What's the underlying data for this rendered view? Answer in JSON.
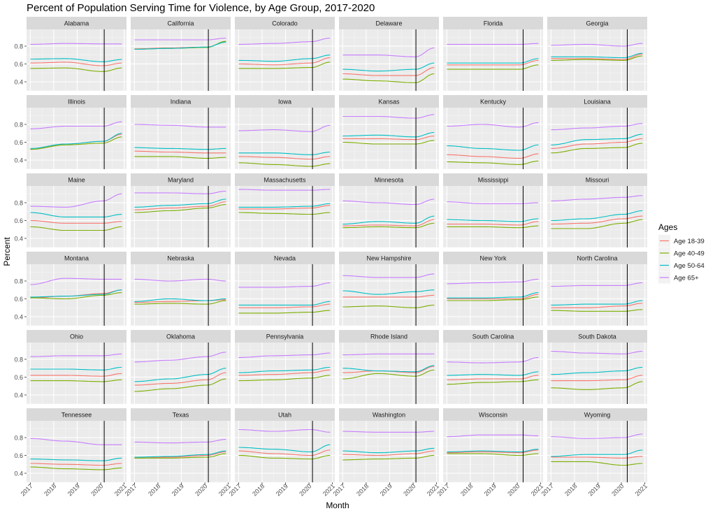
{
  "chart_data": {
    "type": "line",
    "title": "Percent of Population Serving Time for Violence, by Age Group, 2017-2020",
    "xlabel": "Month",
    "ylabel": "Percent",
    "xlim": [
      2016.84,
      2021.1
    ],
    "ylim": [
      0.298,
      0.988
    ],
    "x_ticks": [
      2017,
      2018,
      2019,
      2020,
      2021
    ],
    "x_tick_labels": [
      "2017",
      "2018",
      "2019",
      "2020",
      "2021"
    ],
    "y_ticks": [
      0.4,
      0.6,
      0.8
    ],
    "y_tick_labels": [
      "0.4",
      "0.6",
      "0.8"
    ],
    "grid": true,
    "legend": {
      "title": "Ages",
      "position": "right",
      "entries": [
        {
          "label": "Age 18-39",
          "color": "#F8766D"
        },
        {
          "label": "Age 40-49",
          "color": "#7CAE00"
        },
        {
          "label": "Age 50-64",
          "color": "#00BFC4"
        },
        {
          "label": "Age 65+",
          "color": "#C77CFF"
        }
      ]
    },
    "series_order": [
      "Age 18-39",
      "Age 40-49",
      "Age 50-64",
      "Age 65+"
    ],
    "x": [
      2017.0,
      2018.5,
      2020.1,
      2020.9
    ],
    "facets": [
      {
        "state": "Alabama",
        "vline": 2020.15,
        "values": [
          [
            0.61,
            0.62,
            0.58,
            0.61
          ],
          [
            0.55,
            0.555,
            0.515,
            0.555
          ],
          [
            0.655,
            0.66,
            0.625,
            0.65
          ],
          [
            0.82,
            0.83,
            0.825,
            0.825
          ]
        ]
      },
      {
        "state": "California",
        "vline": 2020.15,
        "values": [
          [
            0.77,
            0.78,
            0.79,
            0.85
          ],
          [
            0.765,
            0.775,
            0.785,
            0.855
          ],
          [
            0.765,
            0.775,
            0.79,
            0.845
          ],
          [
            0.87,
            0.87,
            0.87,
            0.89
          ]
        ]
      },
      {
        "state": "Colorado",
        "vline": 2020.15,
        "values": [
          [
            0.6,
            0.59,
            0.61,
            0.67
          ],
          [
            0.55,
            0.55,
            0.56,
            0.62
          ],
          [
            0.64,
            0.63,
            0.66,
            0.7
          ],
          [
            0.82,
            0.83,
            0.85,
            0.89
          ]
        ]
      },
      {
        "state": "Delaware",
        "vline": 2020.12,
        "values": [
          [
            0.49,
            0.47,
            0.47,
            0.56
          ],
          [
            0.43,
            0.41,
            0.39,
            0.49
          ],
          [
            0.54,
            0.52,
            0.54,
            0.61
          ],
          [
            0.7,
            0.7,
            0.68,
            0.78
          ]
        ]
      },
      {
        "state": "Florida",
        "vline": 2020.25,
        "values": [
          [
            0.59,
            0.59,
            0.59,
            0.64
          ],
          [
            0.54,
            0.54,
            0.54,
            0.59
          ],
          [
            0.61,
            0.61,
            0.61,
            0.66
          ],
          [
            0.82,
            0.82,
            0.82,
            0.83
          ]
        ]
      },
      {
        "state": "Georgia",
        "vline": 2020.25,
        "values": [
          [
            0.66,
            0.66,
            0.65,
            0.71
          ],
          [
            0.64,
            0.65,
            0.64,
            0.69
          ],
          [
            0.68,
            0.68,
            0.67,
            0.72
          ],
          [
            0.81,
            0.82,
            0.8,
            0.83
          ]
        ]
      },
      {
        "state": "Illinois",
        "vline": 2020.15,
        "values": [
          [
            0.52,
            0.58,
            0.61,
            0.69
          ],
          [
            0.52,
            0.57,
            0.59,
            0.66
          ],
          [
            0.53,
            0.58,
            0.61,
            0.7
          ],
          [
            0.75,
            0.78,
            0.78,
            0.83
          ]
        ]
      },
      {
        "state": "Indiana",
        "vline": 2020.15,
        "values": [
          [
            0.5,
            0.49,
            0.48,
            0.48
          ],
          [
            0.44,
            0.44,
            0.42,
            0.43
          ],
          [
            0.54,
            0.53,
            0.52,
            0.53
          ],
          [
            0.8,
            0.79,
            0.77,
            0.77
          ]
        ]
      },
      {
        "state": "Iowa",
        "vline": 2020.15,
        "values": [
          [
            0.44,
            0.43,
            0.41,
            0.44
          ],
          [
            0.37,
            0.35,
            0.33,
            0.36
          ],
          [
            0.48,
            0.48,
            0.46,
            0.49
          ],
          [
            0.73,
            0.74,
            0.72,
            0.79
          ]
        ]
      },
      {
        "state": "Kansas",
        "vline": 2020.12,
        "values": [
          [
            0.64,
            0.64,
            0.63,
            0.67
          ],
          [
            0.6,
            0.58,
            0.58,
            0.62
          ],
          [
            0.67,
            0.68,
            0.66,
            0.71
          ],
          [
            0.89,
            0.89,
            0.87,
            0.91
          ]
        ]
      },
      {
        "state": "Kentucky",
        "vline": 2020.25,
        "values": [
          [
            0.46,
            0.44,
            0.42,
            0.47
          ],
          [
            0.38,
            0.37,
            0.35,
            0.39
          ],
          [
            0.56,
            0.53,
            0.51,
            0.57
          ],
          [
            0.78,
            0.8,
            0.77,
            0.82
          ]
        ]
      },
      {
        "state": "Louisiana",
        "vline": 2020.25,
        "values": [
          [
            0.53,
            0.58,
            0.6,
            0.64
          ],
          [
            0.48,
            0.53,
            0.54,
            0.59
          ],
          [
            0.57,
            0.63,
            0.64,
            0.69
          ],
          [
            0.74,
            0.76,
            0.78,
            0.81
          ]
        ]
      },
      {
        "state": "Maine",
        "vline": 2020.15,
        "values": [
          [
            0.6,
            0.57,
            0.57,
            0.59
          ],
          [
            0.53,
            0.49,
            0.49,
            0.53
          ],
          [
            0.69,
            0.64,
            0.64,
            0.67
          ],
          [
            0.76,
            0.75,
            0.82,
            0.9
          ]
        ]
      },
      {
        "state": "Maryland",
        "vline": 2020.15,
        "values": [
          [
            0.72,
            0.74,
            0.76,
            0.81
          ],
          [
            0.69,
            0.71,
            0.74,
            0.78
          ],
          [
            0.75,
            0.77,
            0.79,
            0.84
          ],
          [
            0.91,
            0.91,
            0.9,
            0.93
          ]
        ]
      },
      {
        "state": "Massachusetts",
        "vline": 2020.15,
        "values": [
          [
            0.73,
            0.73,
            0.74,
            0.77
          ],
          [
            0.69,
            0.68,
            0.67,
            0.69
          ],
          [
            0.75,
            0.75,
            0.76,
            0.79
          ],
          [
            0.95,
            0.94,
            0.94,
            0.95
          ]
        ]
      },
      {
        "state": "Minnesota",
        "vline": 2020.12,
        "values": [
          [
            0.54,
            0.55,
            0.54,
            0.61
          ],
          [
            0.52,
            0.53,
            0.52,
            0.57
          ],
          [
            0.56,
            0.59,
            0.57,
            0.65
          ],
          [
            0.82,
            0.8,
            0.78,
            0.84
          ]
        ]
      },
      {
        "state": "Mississippi",
        "vline": 2020.25,
        "values": [
          [
            0.56,
            0.56,
            0.55,
            0.59
          ],
          [
            0.53,
            0.53,
            0.52,
            0.54
          ],
          [
            0.61,
            0.6,
            0.59,
            0.62
          ],
          [
            0.81,
            0.79,
            0.79,
            0.8
          ]
        ]
      },
      {
        "state": "Missouri",
        "vline": 2020.25,
        "values": [
          [
            0.56,
            0.57,
            0.62,
            0.65
          ],
          [
            0.51,
            0.51,
            0.57,
            0.61
          ],
          [
            0.6,
            0.62,
            0.67,
            0.71
          ],
          [
            0.82,
            0.84,
            0.86,
            0.88
          ]
        ]
      },
      {
        "state": "Montana",
        "vline": 2020.15,
        "values": [
          [
            0.61,
            0.63,
            0.66,
            0.7
          ],
          [
            0.61,
            0.6,
            0.64,
            0.67
          ],
          [
            0.62,
            0.63,
            0.65,
            0.7
          ],
          [
            0.76,
            0.83,
            0.82,
            0.82
          ]
        ]
      },
      {
        "state": "Nebraska",
        "vline": 2020.15,
        "values": [
          [
            0.56,
            0.57,
            0.58,
            0.59
          ],
          [
            0.54,
            0.55,
            0.54,
            0.58
          ],
          [
            0.57,
            0.6,
            0.58,
            0.6
          ],
          [
            0.82,
            0.8,
            0.82,
            0.8
          ]
        ]
      },
      {
        "state": "Nevada",
        "vline": 2020.15,
        "values": [
          [
            0.5,
            0.5,
            0.51,
            0.54
          ],
          [
            0.44,
            0.44,
            0.45,
            0.47
          ],
          [
            0.53,
            0.53,
            0.53,
            0.57
          ],
          [
            0.73,
            0.73,
            0.74,
            0.78
          ]
        ]
      },
      {
        "state": "New Hampshire",
        "vline": 2020.12,
        "values": [
          [
            0.62,
            0.62,
            0.62,
            0.64
          ],
          [
            0.51,
            0.52,
            0.5,
            0.53
          ],
          [
            0.69,
            0.65,
            0.68,
            0.7
          ],
          [
            0.86,
            0.84,
            0.84,
            0.88
          ]
        ]
      },
      {
        "state": "New York",
        "vline": 2020.25,
        "values": [
          [
            0.6,
            0.6,
            0.6,
            0.65
          ],
          [
            0.58,
            0.58,
            0.59,
            0.62
          ],
          [
            0.61,
            0.61,
            0.62,
            0.67
          ],
          [
            0.77,
            0.78,
            0.79,
            0.82
          ]
        ]
      },
      {
        "state": "North Carolina",
        "vline": 2020.25,
        "values": [
          [
            0.5,
            0.5,
            0.52,
            0.55
          ],
          [
            0.47,
            0.46,
            0.46,
            0.48
          ],
          [
            0.53,
            0.54,
            0.54,
            0.58
          ],
          [
            0.74,
            0.75,
            0.75,
            0.78
          ]
        ]
      },
      {
        "state": "Ohio",
        "vline": 2020.15,
        "values": [
          [
            0.62,
            0.62,
            0.61,
            0.64
          ],
          [
            0.56,
            0.56,
            0.55,
            0.57
          ],
          [
            0.69,
            0.69,
            0.68,
            0.71
          ],
          [
            0.83,
            0.84,
            0.84,
            0.86
          ]
        ]
      },
      {
        "state": "Oklahoma",
        "vline": 2020.15,
        "values": [
          [
            0.51,
            0.53,
            0.57,
            0.65
          ],
          [
            0.44,
            0.47,
            0.51,
            0.58
          ],
          [
            0.55,
            0.58,
            0.63,
            0.7
          ],
          [
            0.77,
            0.79,
            0.83,
            0.88
          ]
        ]
      },
      {
        "state": "Pennsylvania",
        "vline": 2020.15,
        "values": [
          [
            0.62,
            0.63,
            0.65,
            0.68
          ],
          [
            0.56,
            0.57,
            0.59,
            0.62
          ],
          [
            0.65,
            0.67,
            0.68,
            0.71
          ],
          [
            0.82,
            0.84,
            0.85,
            0.87
          ]
        ]
      },
      {
        "state": "Rhode Island",
        "vline": 2020.12,
        "values": [
          [
            0.65,
            0.67,
            0.65,
            0.72
          ],
          [
            0.58,
            0.64,
            0.61,
            0.68
          ],
          [
            0.7,
            0.67,
            0.66,
            0.73
          ],
          [
            0.85,
            0.86,
            0.86,
            0.86
          ]
        ]
      },
      {
        "state": "South Carolina",
        "vline": 2020.25,
        "values": [
          [
            0.57,
            0.58,
            0.58,
            0.62
          ],
          [
            0.52,
            0.54,
            0.55,
            0.57
          ],
          [
            0.62,
            0.63,
            0.62,
            0.66
          ],
          [
            0.77,
            0.76,
            0.77,
            0.82
          ]
        ]
      },
      {
        "state": "South Dakota",
        "vline": 2020.25,
        "values": [
          [
            0.56,
            0.56,
            0.57,
            0.62
          ],
          [
            0.48,
            0.46,
            0.48,
            0.55
          ],
          [
            0.63,
            0.65,
            0.67,
            0.71
          ],
          [
            0.89,
            0.87,
            0.86,
            0.89
          ]
        ]
      },
      {
        "state": "Tennessee",
        "vline": 2020.15,
        "values": [
          [
            0.51,
            0.5,
            0.49,
            0.51
          ],
          [
            0.47,
            0.45,
            0.44,
            0.46
          ],
          [
            0.56,
            0.55,
            0.54,
            0.57
          ],
          [
            0.79,
            0.76,
            0.72,
            0.72
          ]
        ]
      },
      {
        "state": "Texas",
        "vline": 2020.15,
        "values": [
          [
            0.57,
            0.58,
            0.6,
            0.64
          ],
          [
            0.57,
            0.57,
            0.58,
            0.62
          ],
          [
            0.58,
            0.59,
            0.61,
            0.65
          ],
          [
            0.75,
            0.74,
            0.75,
            0.78
          ]
        ]
      },
      {
        "state": "Utah",
        "vline": 2020.15,
        "values": [
          [
            0.65,
            0.62,
            0.6,
            0.66
          ],
          [
            0.6,
            0.57,
            0.56,
            0.6
          ],
          [
            0.69,
            0.67,
            0.64,
            0.72
          ],
          [
            0.89,
            0.87,
            0.89,
            0.86
          ]
        ]
      },
      {
        "state": "Washington",
        "vline": 2020.12,
        "values": [
          [
            0.61,
            0.6,
            0.62,
            0.65
          ],
          [
            0.55,
            0.56,
            0.57,
            0.6
          ],
          [
            0.65,
            0.63,
            0.65,
            0.68
          ],
          [
            0.87,
            0.86,
            0.86,
            0.87
          ]
        ]
      },
      {
        "state": "Wisconsin",
        "vline": 2020.25,
        "values": [
          [
            0.63,
            0.64,
            0.63,
            0.66
          ],
          [
            0.62,
            0.62,
            0.6,
            0.62
          ],
          [
            0.64,
            0.65,
            0.64,
            0.67
          ],
          [
            0.81,
            0.83,
            0.83,
            0.82
          ]
        ]
      },
      {
        "state": "Wyoming",
        "vline": 2020.25,
        "values": [
          [
            0.58,
            0.58,
            0.57,
            0.59
          ],
          [
            0.53,
            0.53,
            0.49,
            0.51
          ],
          [
            0.59,
            0.61,
            0.61,
            0.66
          ],
          [
            0.81,
            0.79,
            0.8,
            0.84
          ]
        ]
      }
    ]
  }
}
